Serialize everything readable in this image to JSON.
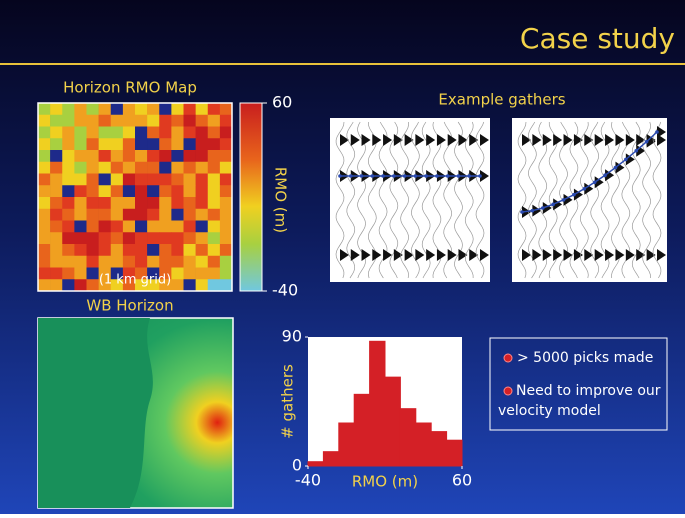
{
  "header": {
    "title": "Case study"
  },
  "rmo_map": {
    "title": "Horizon RMO Map",
    "caption": "(1 km grid)",
    "colorbar": {
      "label": "RMO (m)",
      "range": [
        -40,
        60
      ],
      "ticks": [
        60,
        -40
      ]
    }
  },
  "gathers": {
    "title": "Example gathers"
  },
  "wb_horizon": {
    "title": "WB Horizon"
  },
  "chart_data": {
    "type": "histogram",
    "xlabel": "RMO (m)",
    "ylabel": "# gathers",
    "bins": [
      -40,
      -30,
      -20,
      -10,
      0,
      10,
      20,
      30,
      40,
      50,
      60
    ],
    "values": [
      3,
      10,
      30,
      50,
      87,
      62,
      40,
      30,
      24,
      18
    ],
    "color": "#d42026",
    "xlim": [
      -40,
      60
    ],
    "ylim": [
      0,
      90
    ],
    "xticks": [
      -40,
      60
    ],
    "yticks": [
      0,
      90
    ]
  },
  "bullets": [
    "> 5000 picks made",
    "Need to improve our  velocity model"
  ]
}
